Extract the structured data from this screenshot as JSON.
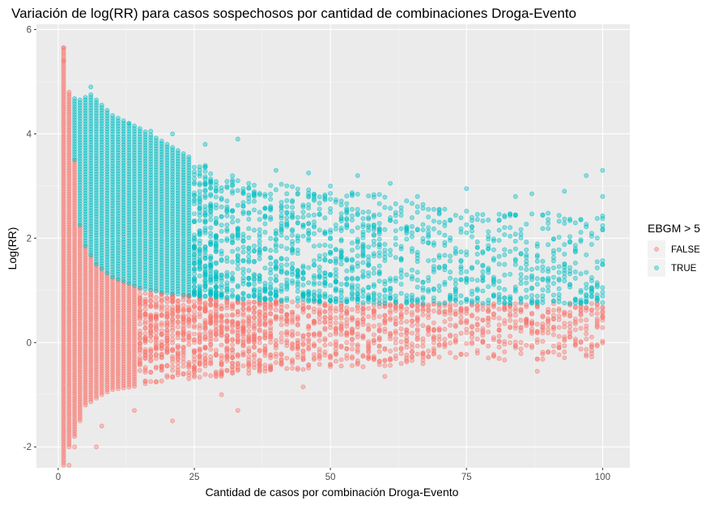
{
  "chart_data": {
    "type": "scatter",
    "title": "Variación de log(RR) para casos sospechosos por cantidad de combinaciones Droga-Evento",
    "xlabel": "Cantidad de casos por combinación Droga-Evento",
    "ylabel": "Log(RR)",
    "xlim": [
      -4,
      105
    ],
    "ylim": [
      -2.4,
      6.1
    ],
    "x_ticks": [
      0,
      25,
      50,
      75,
      100
    ],
    "y_ticks": [
      -2,
      0,
      2,
      4,
      6
    ],
    "x_tick_labels": [
      "0",
      "25",
      "50",
      "75",
      "100"
    ],
    "y_tick_labels": [
      "-2",
      "0",
      "2",
      "4",
      "6"
    ],
    "grid": true,
    "legend": {
      "title": "EBGM > 5",
      "position": "right",
      "entries": [
        {
          "label": "FALSE",
          "color": "#F8766D"
        },
        {
          "label": "TRUE",
          "color": "#00BFC4"
        }
      ]
    },
    "series": [
      {
        "name": "FALSE",
        "color": "#F8766D",
        "opacity": 0.4,
        "boundary": [
          [
            1,
            5.65
          ],
          [
            2,
            4.8
          ],
          [
            3,
            3.5
          ],
          [
            4,
            2.25
          ],
          [
            5,
            1.85
          ],
          [
            7,
            1.5
          ],
          [
            10,
            1.25
          ],
          [
            15,
            1.05
          ],
          [
            20,
            0.95
          ],
          [
            30,
            0.85
          ],
          [
            40,
            0.8
          ],
          [
            50,
            0.78
          ],
          [
            60,
            0.75
          ],
          [
            70,
            0.75
          ],
          [
            80,
            0.75
          ],
          [
            90,
            0.75
          ],
          [
            100,
            0.75
          ]
        ],
        "lower": [
          [
            1,
            -2.3
          ],
          [
            2,
            -2.0
          ],
          [
            3,
            -1.8
          ],
          [
            5,
            -1.2
          ],
          [
            8,
            -1.0
          ],
          [
            10,
            -0.9
          ],
          [
            20,
            -0.75
          ],
          [
            40,
            -0.55
          ],
          [
            60,
            -0.45
          ],
          [
            80,
            -0.35
          ],
          [
            100,
            -0.3
          ]
        ],
        "outliers": [
          [
            1,
            5.65
          ],
          [
            1,
            5.4
          ],
          [
            1,
            -2.35
          ],
          [
            2,
            -2.35
          ],
          [
            3,
            -2.0
          ],
          [
            7,
            -2.0
          ],
          [
            33,
            -1.3
          ],
          [
            14,
            -1.3
          ],
          [
            21,
            -1.5
          ],
          [
            8,
            -1.6
          ],
          [
            60,
            -0.65
          ],
          [
            88,
            -0.55
          ],
          [
            30,
            -1.0
          ],
          [
            45,
            -0.85
          ]
        ]
      },
      {
        "name": "TRUE",
        "color": "#00BFC4",
        "opacity": 0.4,
        "upper": [
          [
            2,
            4.7
          ],
          [
            4,
            4.65
          ],
          [
            6,
            4.75
          ],
          [
            10,
            4.35
          ],
          [
            15,
            4.1
          ],
          [
            20,
            3.8
          ],
          [
            25,
            3.5
          ],
          [
            30,
            3.25
          ],
          [
            40,
            3.05
          ],
          [
            50,
            2.9
          ],
          [
            60,
            2.85
          ],
          [
            70,
            2.6
          ],
          [
            80,
            2.55
          ],
          [
            90,
            2.5
          ],
          [
            100,
            2.5
          ]
        ],
        "outliers": [
          [
            6,
            4.9
          ],
          [
            13,
            4.2
          ],
          [
            17,
            4.05
          ],
          [
            21,
            4.0
          ],
          [
            27,
            3.8
          ],
          [
            33,
            3.9
          ],
          [
            40,
            3.3
          ],
          [
            46,
            3.25
          ],
          [
            55,
            3.2
          ],
          [
            61,
            3.05
          ],
          [
            75,
            2.95
          ],
          [
            84,
            2.8
          ],
          [
            97,
            3.2
          ],
          [
            100,
            3.3
          ],
          [
            100,
            2.8
          ],
          [
            93,
            2.9
          ],
          [
            87,
            2.85
          ],
          [
            66,
            2.8
          ],
          [
            50,
            3.0
          ]
        ]
      }
    ]
  }
}
